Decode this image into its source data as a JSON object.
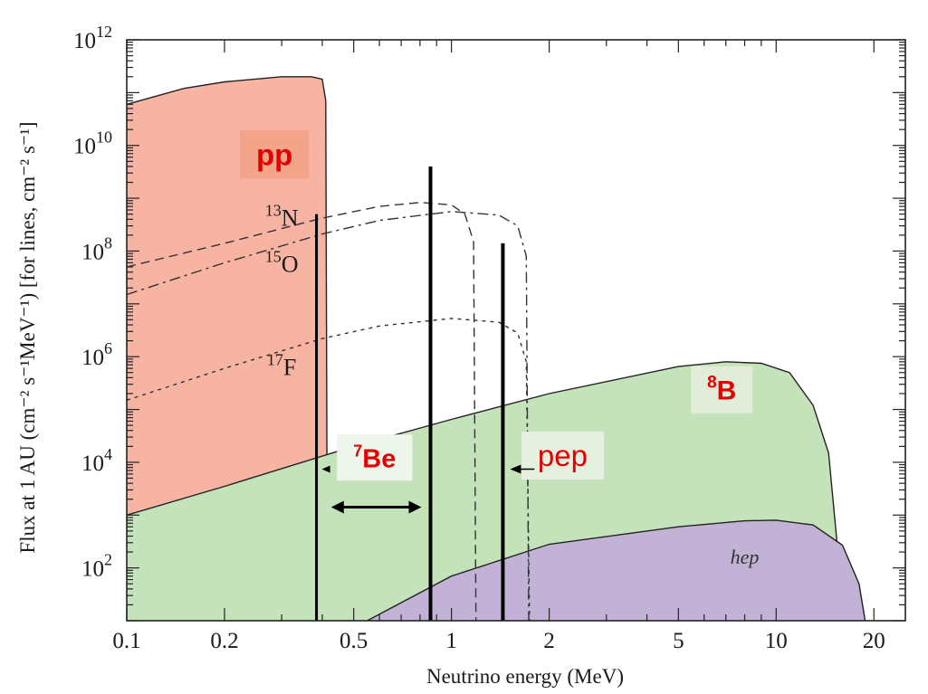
{
  "chart_data": {
    "type": "area",
    "xlabel": "Neutrino energy (MeV)",
    "ylabel": "Flux at 1 AU (cm⁻² s⁻¹MeV⁻¹) [for lines, cm⁻² s⁻¹]",
    "x_scale": "log",
    "y_scale": "log",
    "xlim": [
      0.1,
      25
    ],
    "ylim": [
      10,
      1000000000000.0
    ],
    "x_ticks": [
      {
        "v": 0.1,
        "label": "0.1"
      },
      {
        "v": 0.2,
        "label": "0.2"
      },
      {
        "v": 0.5,
        "label": "0.5"
      },
      {
        "v": 1,
        "label": "1"
      },
      {
        "v": 2,
        "label": "2"
      },
      {
        "v": 5,
        "label": "5"
      },
      {
        "v": 10,
        "label": "10"
      },
      {
        "v": 20,
        "label": "20"
      }
    ],
    "y_ticks": [
      {
        "v": 100.0,
        "base": "10",
        "exp": "2"
      },
      {
        "v": 10000.0,
        "base": "10",
        "exp": "4"
      },
      {
        "v": 1000000.0,
        "base": "10",
        "exp": "6"
      },
      {
        "v": 100000000.0,
        "base": "10",
        "exp": "8"
      },
      {
        "v": 10000000000.0,
        "base": "10",
        "exp": "10"
      },
      {
        "v": 1000000000000.0,
        "base": "10",
        "exp": "12"
      }
    ],
    "filled_series": [
      {
        "name": "pp",
        "fill": "#f7b4a2",
        "points": [
          [
            0.1,
            60000000000.0
          ],
          [
            0.15,
            120000000000.0
          ],
          [
            0.2,
            160000000000.0
          ],
          [
            0.3,
            200000000000.0
          ],
          [
            0.37,
            200000000000.0
          ],
          [
            0.4,
            180000000000.0
          ],
          [
            0.41,
            70000000000.0
          ],
          [
            0.415,
            10
          ]
        ]
      },
      {
        "name": "8B",
        "fill": "#c5e3bb",
        "points": [
          [
            0.1,
            1000.0
          ],
          [
            0.2,
            3500.0
          ],
          [
            0.5,
            20000.0
          ],
          [
            1,
            65000.0
          ],
          [
            2,
            200000.0
          ],
          [
            5,
            650000.0
          ],
          [
            7,
            800000.0
          ],
          [
            9,
            750000.0
          ],
          [
            11,
            500000.0
          ],
          [
            13,
            120000.0
          ],
          [
            14.5,
            15000.0
          ],
          [
            15.5,
            200
          ],
          [
            16,
            10
          ]
        ]
      },
      {
        "name": "hep",
        "fill": "#c2b3d6",
        "points": [
          [
            0.55,
            10
          ],
          [
            1,
            70
          ],
          [
            2,
            280
          ],
          [
            5,
            600
          ],
          [
            8,
            780
          ],
          [
            10,
            800
          ],
          [
            13,
            650
          ],
          [
            16,
            270
          ],
          [
            18,
            50
          ],
          [
            18.8,
            10
          ]
        ]
      }
    ],
    "dashed_series": [
      {
        "name": "13N",
        "dash": "10,6",
        "points": [
          [
            0.1,
            50000000.0
          ],
          [
            0.2,
            140000000.0
          ],
          [
            0.4,
            420000000.0
          ],
          [
            0.6,
            700000000.0
          ],
          [
            0.8,
            830000000.0
          ],
          [
            1.0,
            750000000.0
          ],
          [
            1.1,
            500000000.0
          ],
          [
            1.17,
            150000000.0
          ],
          [
            1.19,
            10
          ]
        ]
      },
      {
        "name": "15O",
        "dash": "12,5,3,5",
        "points": [
          [
            0.1,
            15000000.0
          ],
          [
            0.2,
            60000000.0
          ],
          [
            0.4,
            210000000.0
          ],
          [
            0.6,
            380000000.0
          ],
          [
            1.0,
            560000000.0
          ],
          [
            1.4,
            480000000.0
          ],
          [
            1.6,
            300000000.0
          ],
          [
            1.7,
            80000000.0
          ],
          [
            1.73,
            10
          ]
        ]
      },
      {
        "name": "17F",
        "dash": "4,5",
        "points": [
          [
            0.1,
            150000.0
          ],
          [
            0.2,
            600000.0
          ],
          [
            0.4,
            2200000.0
          ],
          [
            0.6,
            3800000.0
          ],
          [
            1.0,
            5300000.0
          ],
          [
            1.4,
            4500000.0
          ],
          [
            1.6,
            2800000.0
          ],
          [
            1.7,
            800000.0
          ],
          [
            1.74,
            10
          ]
        ]
      }
    ],
    "line_series": [
      {
        "name": "7Be (0.38 MeV)",
        "energy": 0.384,
        "flux": 500000000.0,
        "width": 3
      },
      {
        "name": "7Be (0.86 MeV)",
        "energy": 0.862,
        "flux": 4000000000.0,
        "width": 4
      },
      {
        "name": "pep",
        "energy": 1.44,
        "flux": 140000000.0,
        "width": 4
      }
    ],
    "curve_labels": [
      {
        "base": "N",
        "sup": "13",
        "x": 0.3,
        "y": 300000000.0
      },
      {
        "base": "O",
        "sup": "15",
        "x": 0.3,
        "y": 40000000.0
      },
      {
        "base": "F",
        "sup": "17",
        "x": 0.3,
        "y": 450000.0
      },
      {
        "text": "hep",
        "x": 8,
        "y": 120.0
      }
    ],
    "annotation_boxes": [
      {
        "name": "pp",
        "text": "pp",
        "sup": "",
        "x": 0.285,
        "y": 6000000000.0,
        "fill": "#f3a489",
        "size": 33
      },
      {
        "name": "8B",
        "text": "B",
        "sup": "8",
        "x": 6.8,
        "y": 210000.0,
        "fill": "#e1edd9",
        "size": 30
      },
      {
        "name": "7Be",
        "text": "Be",
        "sup": "7",
        "x": 0.58,
        "y": 11000.0,
        "fill": "#eef5ea",
        "size": 29
      },
      {
        "name": "pep",
        "text": "pep",
        "sup": "",
        "x": 2.2,
        "y": 12000.0,
        "fill": "#e6f0e0",
        "size": 33
      }
    ]
  }
}
